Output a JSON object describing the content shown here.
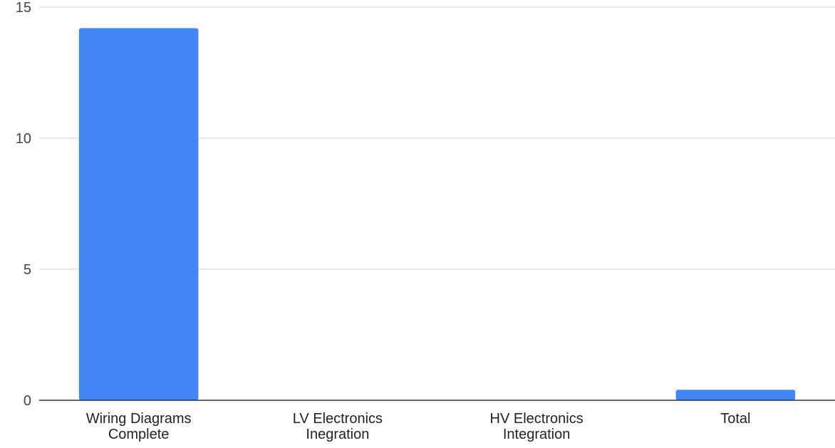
{
  "chart_data": {
    "type": "bar",
    "title": "",
    "xlabel": "",
    "ylabel": "",
    "categories": [
      [
        "Wiring Diagrams",
        "Complete"
      ],
      [
        "LV Electronics",
        "Inegration"
      ],
      [
        "HV Electronics",
        "Integration"
      ],
      [
        "Total"
      ]
    ],
    "values": [
      14.2,
      0,
      0,
      0.4
    ],
    "ylim": [
      0,
      15
    ],
    "yticks": [
      "0",
      "5",
      "10",
      "15"
    ],
    "grid": true,
    "legend": "none",
    "bar_color": "#4285f4"
  }
}
